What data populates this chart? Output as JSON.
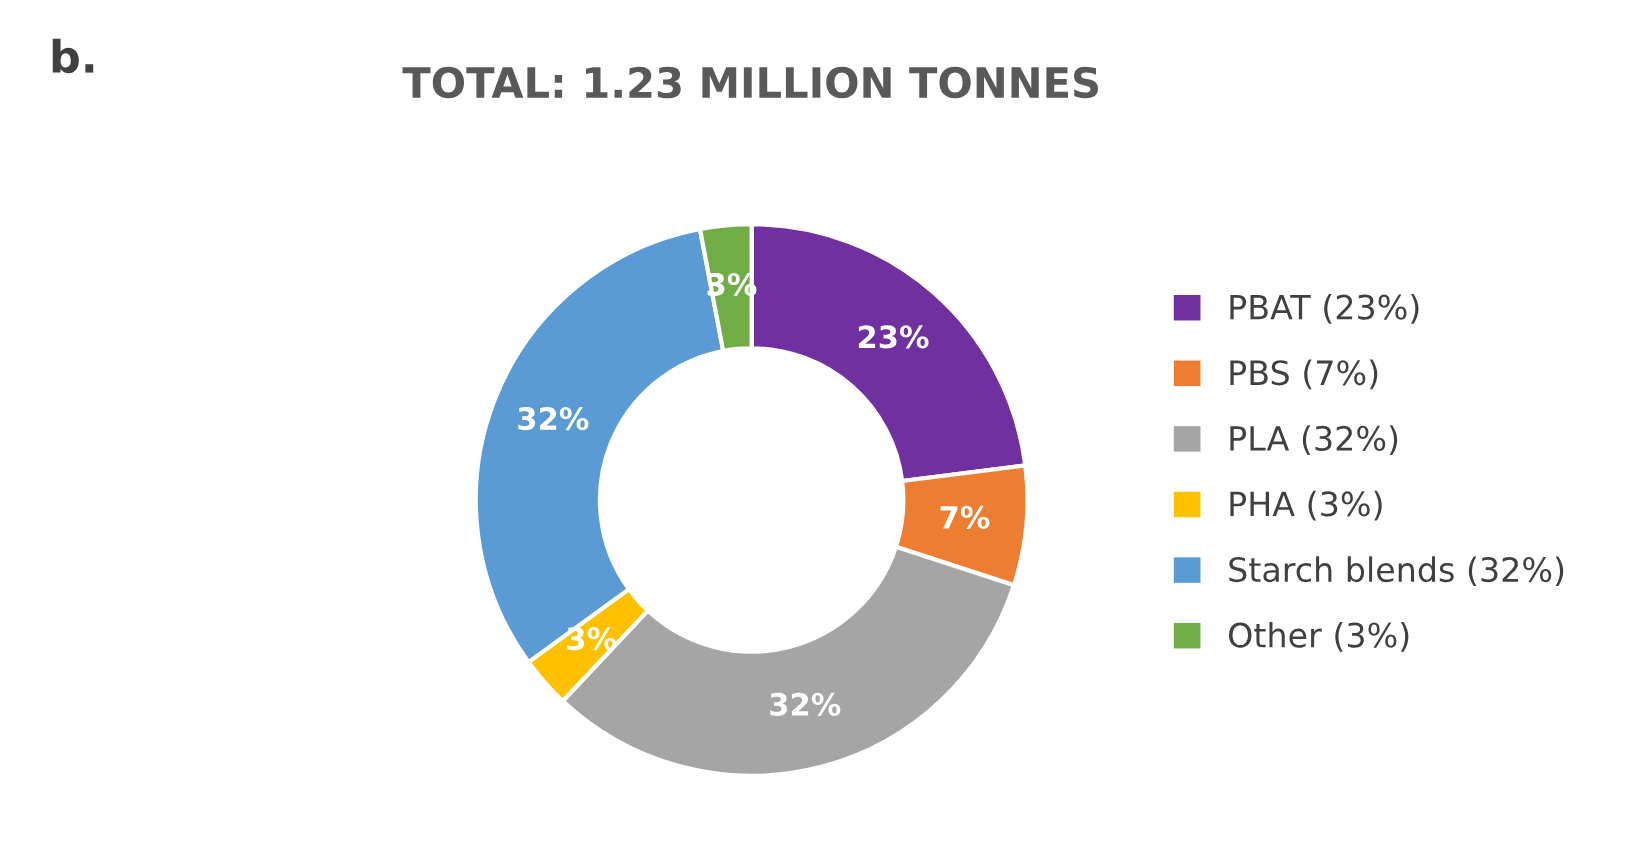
{
  "chart_data": {
    "type": "donut",
    "title": "TOTAL: 1.23 MILLION TONNES",
    "annotations": [
      "b."
    ],
    "categories": [
      "PBAT (23%)",
      "PBS (7%)",
      "PLA (32%)",
      "PHA (3%)",
      "Starch blends (32%)",
      "Other (3%)"
    ],
    "values": [
      23,
      7,
      32,
      3,
      32,
      3
    ],
    "value_labels": [
      "23%",
      "7%",
      "32%",
      "3%",
      "32%",
      "3%"
    ],
    "colors": [
      "#7030a0",
      "#ed7d31",
      "#a5a5a5",
      "#ffc000",
      "#5b9bd5",
      "#70ad47"
    ],
    "legend": "right"
  }
}
